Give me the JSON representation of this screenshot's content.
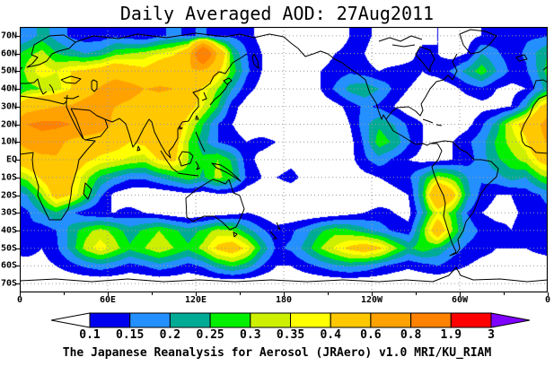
{
  "title": "Daily Averaged AOD: 27Aug2011",
  "caption": "The Japanese Reanalysis for Aerosol (JRAero) v1.0 MRI/KU_RIAM",
  "axes": {
    "lat_labels": [
      "70N",
      "60N",
      "50N",
      "40N",
      "30N",
      "20N",
      "10N",
      "EQ",
      "10S",
      "20S",
      "30S",
      "40S",
      "50S",
      "60S",
      "70S"
    ],
    "lon_labels": [
      "0",
      "60E",
      "120E",
      "180",
      "120W",
      "60W",
      "0"
    ]
  },
  "colorbar": {
    "tick_labels": [
      "0.1",
      "0.15",
      "0.2",
      "0.25",
      "0.3",
      "0.35",
      "0.4",
      "0.6",
      "0.8",
      "1.9",
      "3"
    ],
    "colors": [
      "#ffffff",
      "#0000f0",
      "#2490ff",
      "#00ab96",
      "#00f000",
      "#ccf000",
      "#ffff00",
      "#ffc800",
      "#ffa200",
      "#ff8200",
      "#ff0000",
      "#8000ff"
    ]
  },
  "chart_data": {
    "type": "heatmap",
    "title": "Daily Averaged AOD: 27Aug2011",
    "variable": "Aerosol Optical Depth (AOD), daily average",
    "date": "27Aug2011",
    "lon_range": [
      0,
      360
    ],
    "lat_range": [
      75,
      -75
    ],
    "lat_tick_deg": 10,
    "lon_tick_deg": 60,
    "grid": "on-dotted",
    "levels": [
      0.1,
      0.15,
      0.2,
      0.25,
      0.3,
      0.35,
      0.4,
      0.6,
      0.8,
      1.9,
      3
    ],
    "grid_lons": [
      5,
      15,
      25,
      35,
      45,
      55,
      65,
      75,
      85,
      95,
      105,
      115,
      125,
      135,
      145,
      155,
      165,
      175,
      185,
      195,
      205,
      215,
      225,
      235,
      245,
      255,
      265,
      275,
      285,
      295,
      305,
      315,
      325,
      335,
      345,
      355
    ],
    "grid_lats": [
      70,
      60,
      50,
      40,
      30,
      20,
      10,
      0,
      -10,
      -20,
      -30,
      -40,
      -50,
      -60,
      -70
    ],
    "values": [
      [
        0.16,
        0.22,
        0.18,
        0.14,
        0.12,
        0.12,
        0.14,
        0.12,
        0.1,
        0.14,
        0.16,
        0.14,
        0.16,
        0.12,
        0.14,
        0.12,
        0.08,
        0.06,
        0.05,
        0.06,
        0.05,
        0.06,
        0.1,
        0.12,
        0.08,
        0.05,
        0.05,
        0.08,
        0.1,
        0.06,
        0.08,
        0.1,
        0.12,
        0.12,
        0.14,
        0.14
      ],
      [
        0.28,
        0.32,
        0.25,
        0.22,
        0.2,
        0.22,
        0.28,
        0.3,
        0.32,
        0.35,
        0.38,
        0.5,
        1.2,
        0.55,
        0.25,
        0.15,
        0.1,
        0.07,
        0.06,
        0.06,
        0.07,
        0.1,
        0.12,
        0.1,
        0.06,
        0.05,
        0.08,
        0.12,
        0.1,
        0.07,
        0.1,
        0.2,
        0.16,
        0.12,
        0.16,
        0.22
      ],
      [
        0.32,
        0.38,
        0.35,
        0.4,
        0.42,
        0.45,
        0.5,
        0.45,
        0.42,
        0.48,
        0.55,
        0.6,
        0.55,
        0.42,
        0.28,
        0.16,
        0.1,
        0.08,
        0.07,
        0.08,
        0.1,
        0.12,
        0.14,
        0.12,
        0.1,
        0.12,
        0.12,
        0.1,
        0.12,
        0.16,
        0.22,
        0.28,
        0.2,
        0.14,
        0.14,
        0.22
      ],
      [
        0.28,
        0.3,
        0.32,
        0.4,
        0.52,
        0.62,
        0.72,
        0.68,
        0.6,
        0.62,
        0.6,
        0.5,
        0.38,
        0.3,
        0.2,
        0.12,
        0.08,
        0.06,
        0.05,
        0.07,
        0.1,
        0.16,
        0.22,
        0.24,
        0.2,
        0.14,
        0.1,
        0.08,
        0.06,
        0.08,
        0.12,
        0.14,
        0.1,
        0.08,
        0.1,
        0.18
      ],
      [
        0.5,
        0.55,
        0.6,
        0.62,
        0.68,
        0.66,
        0.6,
        0.55,
        0.5,
        0.52,
        0.5,
        0.45,
        0.35,
        0.25,
        0.12,
        0.07,
        0.05,
        0.04,
        0.04,
        0.05,
        0.06,
        0.08,
        0.12,
        0.16,
        0.14,
        0.1,
        0.06,
        0.05,
        0.04,
        0.05,
        0.06,
        0.08,
        0.08,
        0.1,
        0.2,
        0.4
      ],
      [
        0.8,
        0.85,
        0.85,
        0.8,
        0.78,
        0.72,
        0.55,
        0.48,
        0.5,
        0.58,
        0.52,
        0.35,
        0.25,
        0.15,
        0.1,
        0.07,
        0.05,
        0.05,
        0.06,
        0.07,
        0.05,
        0.05,
        0.1,
        0.18,
        0.24,
        0.2,
        0.14,
        0.1,
        0.06,
        0.05,
        0.08,
        0.14,
        0.22,
        0.35,
        0.45,
        0.6
      ],
      [
        0.68,
        0.72,
        0.66,
        0.56,
        0.5,
        0.46,
        0.44,
        0.4,
        0.42,
        0.52,
        0.45,
        0.3,
        0.22,
        0.15,
        0.12,
        0.1,
        0.12,
        0.1,
        0.08,
        0.1,
        0.08,
        0.06,
        0.08,
        0.16,
        0.28,
        0.24,
        0.16,
        0.1,
        0.08,
        0.1,
        0.14,
        0.18,
        0.26,
        0.32,
        0.38,
        0.55
      ],
      [
        0.48,
        0.55,
        0.58,
        0.48,
        0.42,
        0.38,
        0.36,
        0.34,
        0.32,
        0.4,
        0.42,
        0.3,
        0.26,
        0.3,
        0.24,
        0.12,
        0.08,
        0.06,
        0.08,
        0.06,
        0.05,
        0.05,
        0.08,
        0.14,
        0.18,
        0.14,
        0.1,
        0.08,
        0.08,
        0.1,
        0.12,
        0.18,
        0.24,
        0.28,
        0.32,
        0.42
      ],
      [
        0.32,
        0.42,
        0.48,
        0.42,
        0.32,
        0.24,
        0.2,
        0.16,
        0.16,
        0.2,
        0.24,
        0.28,
        0.24,
        0.32,
        0.26,
        0.14,
        0.1,
        0.1,
        0.12,
        0.08,
        0.05,
        0.05,
        0.06,
        0.08,
        0.1,
        0.12,
        0.14,
        0.22,
        0.32,
        0.28,
        0.2,
        0.16,
        0.18,
        0.22,
        0.2,
        0.28
      ],
      [
        0.2,
        0.3,
        0.45,
        0.4,
        0.28,
        0.16,
        0.08,
        0.06,
        0.05,
        0.05,
        0.06,
        0.08,
        0.06,
        0.08,
        0.08,
        0.06,
        0.05,
        0.05,
        0.06,
        0.05,
        0.04,
        0.04,
        0.05,
        0.05,
        0.06,
        0.08,
        0.1,
        0.25,
        0.6,
        0.45,
        0.22,
        0.13,
        0.1,
        0.1,
        0.12,
        0.15
      ],
      [
        0.14,
        0.2,
        0.24,
        0.16,
        0.12,
        0.1,
        0.1,
        0.12,
        0.1,
        0.08,
        0.06,
        0.05,
        0.05,
        0.06,
        0.08,
        0.1,
        0.08,
        0.05,
        0.05,
        0.05,
        0.05,
        0.06,
        0.08,
        0.1,
        0.12,
        0.1,
        0.08,
        0.2,
        0.35,
        0.28,
        0.15,
        0.1,
        0.08,
        0.09,
        0.11,
        0.12
      ],
      [
        0.14,
        0.12,
        0.15,
        0.22,
        0.28,
        0.32,
        0.28,
        0.22,
        0.26,
        0.3,
        0.26,
        0.22,
        0.26,
        0.32,
        0.3,
        0.22,
        0.16,
        0.12,
        0.14,
        0.18,
        0.24,
        0.28,
        0.26,
        0.22,
        0.18,
        0.14,
        0.12,
        0.28,
        0.5,
        0.3,
        0.18,
        0.14,
        0.12,
        0.1,
        0.12,
        0.14
      ],
      [
        0.12,
        0.1,
        0.14,
        0.22,
        0.32,
        0.38,
        0.32,
        0.26,
        0.3,
        0.34,
        0.3,
        0.26,
        0.32,
        0.42,
        0.46,
        0.38,
        0.24,
        0.14,
        0.16,
        0.22,
        0.3,
        0.36,
        0.42,
        0.46,
        0.42,
        0.32,
        0.24,
        0.28,
        0.24,
        0.18,
        0.14,
        0.12,
        0.1,
        0.1,
        0.1,
        0.11
      ],
      [
        0.08,
        0.08,
        0.1,
        0.13,
        0.16,
        0.18,
        0.16,
        0.13,
        0.15,
        0.18,
        0.16,
        0.13,
        0.16,
        0.22,
        0.26,
        0.22,
        0.15,
        0.1,
        0.1,
        0.13,
        0.16,
        0.19,
        0.21,
        0.19,
        0.16,
        0.13,
        0.11,
        0.13,
        0.15,
        0.12,
        0.1,
        0.08,
        0.08,
        0.08,
        0.08,
        0.08
      ],
      [
        0.05,
        0.05,
        0.05,
        0.05,
        0.05,
        0.05,
        0.05,
        0.05,
        0.05,
        0.05,
        0.05,
        0.05,
        0.05,
        0.05,
        0.05,
        0.05,
        0.05,
        0.05,
        0.05,
        0.05,
        0.05,
        0.05,
        0.05,
        0.05,
        0.05,
        0.05,
        0.05,
        0.05,
        0.05,
        0.05,
        0.05,
        0.05,
        0.05,
        0.05,
        0.05,
        0.05
      ]
    ]
  }
}
